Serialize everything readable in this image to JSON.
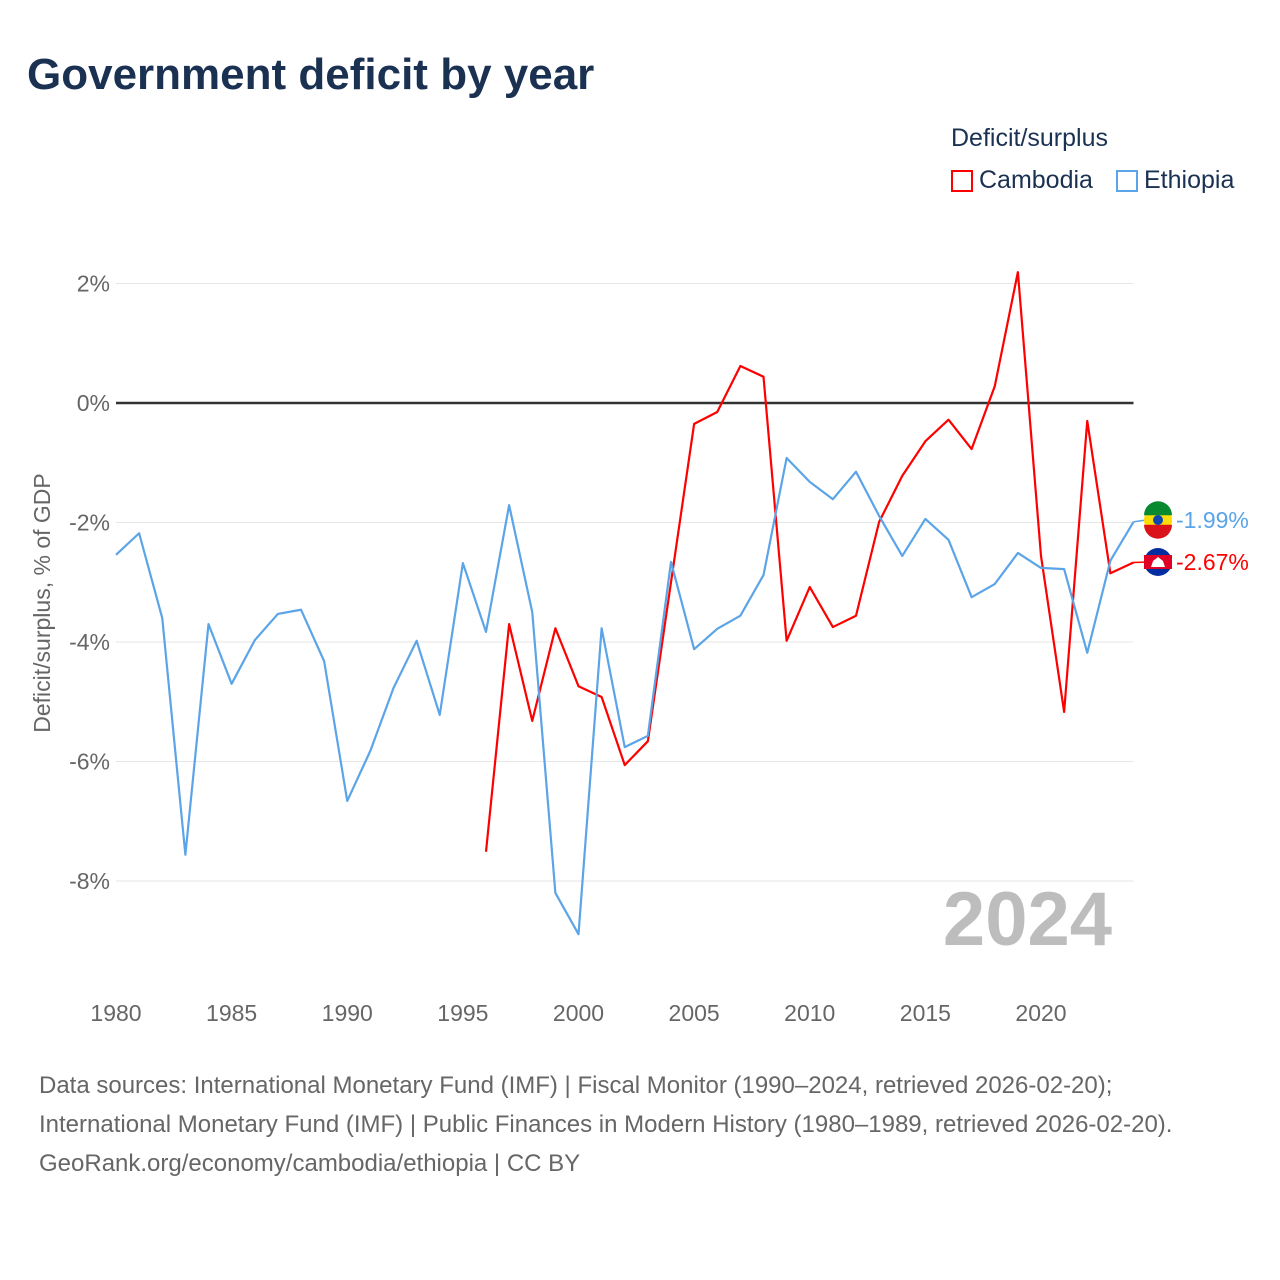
{
  "chart_data": {
    "type": "line",
    "title": "Government deficit by year",
    "xlabel": "",
    "ylabel": "Deficit/surplus, % of GDP",
    "xlim": [
      1980,
      2024
    ],
    "ylim": [
      -10,
      3
    ],
    "x_ticks": [
      1980,
      1985,
      1990,
      1995,
      2000,
      2005,
      2010,
      2015,
      2020
    ],
    "y_ticks": [
      2,
      0,
      -2,
      -4,
      -6,
      -8
    ],
    "y_tick_labels": [
      "2%",
      "0%",
      "-2%",
      "-4%",
      "-6%",
      "-8%"
    ],
    "x_tick_labels": [
      "1980",
      "1985",
      "1990",
      "1995",
      "2000",
      "2005",
      "2010",
      "2015",
      "2020"
    ],
    "legend_title": "Deficit/surplus",
    "legend_position": "top-right",
    "year_watermark": "2024",
    "series": [
      {
        "name": "Cambodia",
        "color": "#ff0000",
        "end_label": "-2.67%",
        "flag": "cambodia-flag",
        "x": [
          1996,
          1997,
          1998,
          1999,
          2000,
          2001,
          2002,
          2003,
          2004,
          2005,
          2006,
          2007,
          2008,
          2009,
          2010,
          2011,
          2012,
          2013,
          2014,
          2015,
          2016,
          2017,
          2018,
          2019,
          2020,
          2021,
          2022,
          2023,
          2024
        ],
        "values": [
          -7.51,
          -3.7,
          -5.32,
          -3.77,
          -4.74,
          -4.92,
          -6.06,
          -5.66,
          -3.0,
          -0.35,
          -0.15,
          0.62,
          0.44,
          -3.98,
          -3.08,
          -3.75,
          -3.56,
          -1.99,
          -1.22,
          -0.64,
          -0.28,
          -0.77,
          0.28,
          2.19,
          -2.56,
          -5.17,
          -0.3,
          -2.85,
          -2.67
        ]
      },
      {
        "name": "Ethiopia",
        "color": "#5ba4e8",
        "end_label": "-1.99%",
        "flag": "ethiopia-flag",
        "x": [
          1980,
          1981,
          1982,
          1983,
          1984,
          1985,
          1986,
          1987,
          1988,
          1989,
          1990,
          1991,
          1992,
          1993,
          1994,
          1995,
          1996,
          1997,
          1998,
          1999,
          2000,
          2001,
          2002,
          2003,
          2004,
          2005,
          2006,
          2007,
          2008,
          2009,
          2010,
          2011,
          2012,
          2013,
          2014,
          2015,
          2016,
          2017,
          2018,
          2019,
          2020,
          2021,
          2022,
          2023,
          2024
        ],
        "values": [
          -2.54,
          -2.18,
          -3.6,
          -7.56,
          -3.7,
          -4.7,
          -3.97,
          -3.53,
          -3.46,
          -4.32,
          -6.66,
          -5.82,
          -4.77,
          -3.98,
          -5.22,
          -2.68,
          -3.83,
          -1.71,
          -3.5,
          -8.2,
          -8.89,
          -3.77,
          -5.76,
          -5.57,
          -2.66,
          -4.12,
          -3.78,
          -3.56,
          -2.88,
          -0.92,
          -1.32,
          -1.61,
          -1.15,
          -1.89,
          -2.56,
          -1.94,
          -2.29,
          -3.25,
          -3.03,
          -2.51,
          -2.76,
          -2.78,
          -4.18,
          -2.64,
          -1.99
        ]
      }
    ]
  },
  "footer": {
    "sources": "Data sources: International Monetary Fund (IMF) | Fiscal Monitor (1990–2024, retrieved 2026-02-20); International Monetary Fund (IMF) | Public Finances in Modern History (1980–1989, retrieved 2026-02-20).",
    "credit": "GeoRank.org/economy/cambodia/ethiopia | CC BY"
  }
}
